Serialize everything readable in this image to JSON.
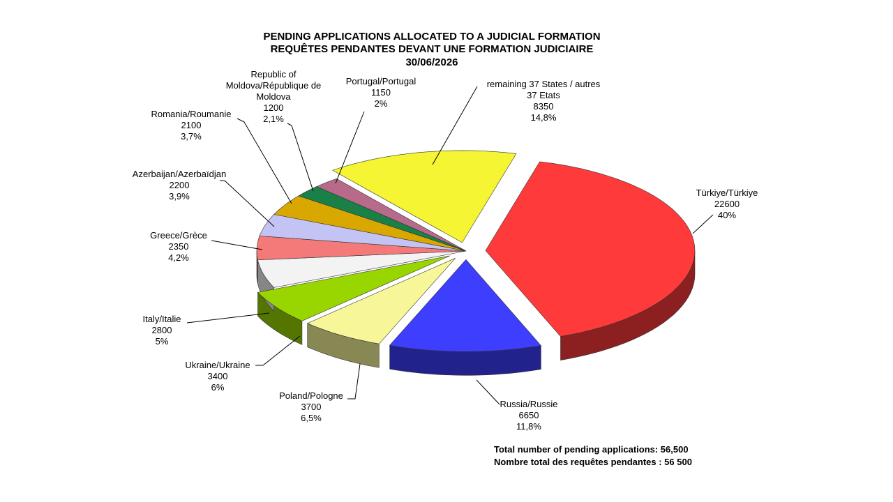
{
  "chart_data": {
    "type": "pie",
    "title_lines": [
      "PENDING APPLICATIONS ALLOCATED TO A JUDICIAL FORMATION",
      "REQUÊTES PENDANTES DEVANT UNE FORMATION JUDICIAIRE",
      "30/06/2026"
    ],
    "slices": [
      {
        "id": "turkiye",
        "lines": [
          "Türkiye/Türkiye",
          "22600",
          "40%"
        ],
        "value": 22600,
        "percent": 40,
        "color": "#ff3a3a",
        "exploded": true
      },
      {
        "id": "russia",
        "lines": [
          "Russia/Russie",
          "6650",
          "11,8%"
        ],
        "value": 6650,
        "percent": 11.8,
        "color": "#3e3eff",
        "exploded": true
      },
      {
        "id": "poland",
        "lines": [
          "Poland/Pologne",
          "3700",
          "6,5%"
        ],
        "value": 3700,
        "percent": 6.5,
        "color": "#f7f79a",
        "exploded": true
      },
      {
        "id": "ukraine",
        "lines": [
          "Ukraine/Ukraine",
          "3400",
          "6%"
        ],
        "value": 3400,
        "percent": 6,
        "color": "#99d600",
        "exploded": true
      },
      {
        "id": "italy",
        "lines": [
          "Italy/Italie",
          "2800",
          "5%"
        ],
        "value": 2800,
        "percent": 5,
        "color": "#f3f3f3",
        "exploded": false
      },
      {
        "id": "greece",
        "lines": [
          "Greece/Grèce",
          "2350",
          "4,2%"
        ],
        "value": 2350,
        "percent": 4.2,
        "color": "#f47a7a",
        "exploded": false
      },
      {
        "id": "azerbaijan",
        "lines": [
          "Azerbaijan/Azerbaïdjan",
          "2200",
          "3,9%"
        ],
        "value": 2200,
        "percent": 3.9,
        "color": "#c4c4f4",
        "exploded": false
      },
      {
        "id": "romania",
        "lines": [
          "Romania/Roumanie",
          "2100",
          "3,7%"
        ],
        "value": 2100,
        "percent": 3.7,
        "color": "#d8a800",
        "exploded": false
      },
      {
        "id": "moldova",
        "lines": [
          "Republic of",
          "Moldova/République de",
          "Moldova",
          "1200",
          "2,1%"
        ],
        "value": 1200,
        "percent": 2.1,
        "color": "#1a8048",
        "exploded": false
      },
      {
        "id": "portugal",
        "lines": [
          "Portugal/Portugal",
          "1150",
          "2%"
        ],
        "value": 1150,
        "percent": 2,
        "color": "#b86a8a",
        "exploded": false
      },
      {
        "id": "remaining",
        "lines": [
          "remaining 37 States / autres",
          "37 Etats",
          "8350",
          "14,8%"
        ],
        "value": 8350,
        "percent": 14.8,
        "color": "#f5f533",
        "exploded": true
      }
    ],
    "footer": [
      "Total number  of  pending applications:  56,500",
      "Nombre total des requêtes pendantes : 56 500"
    ]
  }
}
